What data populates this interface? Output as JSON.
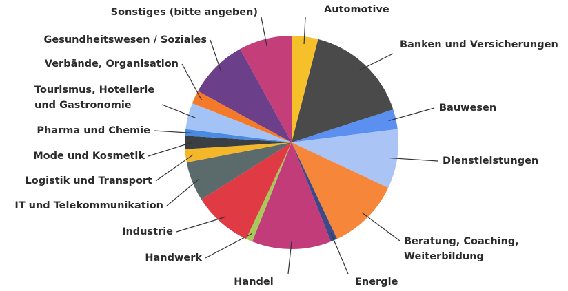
{
  "chart_data": {
    "type": "pie",
    "categories": [
      "Automotive",
      "Banken und Versicherungen",
      "Bauwesen",
      "Dienstleistungen",
      "Beratung, Coaching,\nWeiterbildung",
      "Energie",
      "Handel",
      "Handwerk",
      "Industrie",
      "IT und Telekommunikation",
      "Logistik und Transport",
      "Mode und Kosmetik",
      "Pharma und Chemie",
      "Tourismus, Hotellerie\nund Gastronomie",
      "Verbände, Organisation",
      "Gesundheitswesen / Soziales",
      "Sonstiges (bitte angeben)"
    ],
    "values": [
      4,
      16,
      3,
      9,
      11,
      1,
      12,
      1,
      9,
      6,
      2,
      2,
      1,
      4,
      2,
      9,
      8
    ],
    "colors": [
      "#f5c02a",
      "#4a4a4a",
      "#5b8ff0",
      "#a9c4f5",
      "#f5863a",
      "#3d4a8a",
      "#c23c7a",
      "#a8c95a",
      "#e03a45",
      "#5b6b6b",
      "#f5b72a",
      "#3a3f44",
      "#4a8ae0",
      "#a3c2f5",
      "#f47a2a",
      "#6b3f8a",
      "#c43f7a"
    ]
  }
}
